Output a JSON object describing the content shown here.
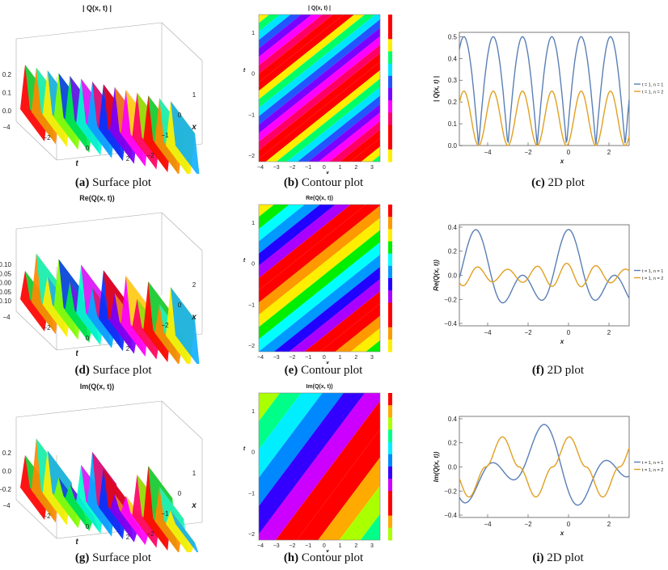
{
  "rows": [
    {
      "surface": {
        "title": "| Q(x, t) |",
        "zticks": [
          "0.2",
          "0.1",
          "0.0"
        ],
        "tticks": [
          "−4",
          "−2",
          "0",
          "2"
        ],
        "xticks": [
          "1",
          "0",
          "−1",
          "−2"
        ],
        "xlabel": "x",
        "tlabel": "t"
      },
      "contour": {
        "title": "| Q(x, t) |",
        "yticks": [
          "1",
          "0",
          "−1",
          "−2"
        ],
        "xticks": [
          "−4",
          "−3",
          "−2",
          "−1",
          "0",
          "1",
          "2",
          "3"
        ],
        "xlabel": "x",
        "ylabel": "t",
        "stripes": 5.2,
        "slope": 1.25,
        "palette": "abs"
      },
      "line": {
        "ylabel": "| Q(x, t) |",
        "xlabel": "x",
        "xticks": [
          "−4",
          "−2",
          "0",
          "2"
        ],
        "yticks": [
          "0.0",
          "0.1",
          "0.2",
          "0.3",
          "0.4",
          "0.5"
        ],
        "ylim": [
          0,
          0.52
        ],
        "legend": [
          "t = 1, n = 1",
          "t = 1, n = 2"
        ]
      },
      "captions": [
        {
          "tag": "(a)",
          "text": "Surface plot"
        },
        {
          "tag": "(b)",
          "text": "Contour plot"
        },
        {
          "tag": "(c)",
          "text": "2D plot"
        }
      ]
    },
    {
      "surface": {
        "title": "Re(Q(x, t))",
        "zticks": [
          "0.10",
          "0.05",
          "0.00",
          "−0.05",
          "−0.10"
        ],
        "tticks": [
          "−4",
          "−2",
          "0",
          "2"
        ],
        "xticks": [
          "2",
          "0",
          "−2"
        ],
        "xlabel": "x",
        "tlabel": "t"
      },
      "contour": {
        "title": "Re(Q(x, t))",
        "yticks": [
          "1",
          "0",
          "−1",
          "−2"
        ],
        "xticks": [
          "−4",
          "−3",
          "−2",
          "−1",
          "0",
          "1",
          "2",
          "3"
        ],
        "xlabel": "x",
        "ylabel": "t",
        "stripes": 3.6,
        "slope": 1.25,
        "palette": "re"
      },
      "line": {
        "ylabel": "Re(Q(x, t))",
        "xlabel": "x",
        "xticks": [
          "−4",
          "−2",
          "0",
          "2"
        ],
        "yticks": [
          "−0.4",
          "−0.2",
          "0.0",
          "0.2",
          "0.4"
        ],
        "ylim": [
          -0.42,
          0.42
        ],
        "legend": [
          "t = 1, n = 1",
          "t = 1, n = 2"
        ]
      },
      "captions": [
        {
          "tag": "(d)",
          "text": "Surface plot"
        },
        {
          "tag": "(e)",
          "text": "Contour plot"
        },
        {
          "tag": "(f)",
          "text": "2D plot"
        }
      ]
    },
    {
      "surface": {
        "title": "Im(Q(x, t))",
        "zticks": [
          "0.2",
          "0.0",
          "−0.2"
        ],
        "tticks": [
          "−4",
          "−2",
          "0",
          "2"
        ],
        "xticks": [
          "1",
          "0",
          "−1",
          "−2"
        ],
        "xlabel": "x",
        "tlabel": "t"
      },
      "contour": {
        "title": "Im(Q(x, t))",
        "yticks": [
          "1",
          "0",
          "−1",
          "−2"
        ],
        "xticks": [
          "−4",
          "−3",
          "−2",
          "−1",
          "0",
          "1",
          "2",
          "3"
        ],
        "xlabel": "x",
        "ylabel": "t",
        "stripes": 2.6,
        "slope": 0.75,
        "palette": "im"
      },
      "line": {
        "ylabel": "Im(Q(x, t))",
        "xlabel": "x",
        "xticks": [
          "−4",
          "−2",
          "0",
          "2"
        ],
        "yticks": [
          "−0.4",
          "−0.2",
          "0.0",
          "0.2",
          "0.4"
        ],
        "ylim": [
          -0.42,
          0.42
        ],
        "legend": [
          "t = 1, n = 1",
          "t = 1, n = 2"
        ]
      },
      "captions": [
        {
          "tag": "(g)",
          "text": "Surface plot"
        },
        {
          "tag": "(h)",
          "text": "Contour plot"
        },
        {
          "tag": "(i)",
          "text": "2D plot"
        }
      ]
    }
  ],
  "chart_data": [
    {
      "type": "line",
      "title": "",
      "xlabel": "x",
      "ylabel": "| Q(x, t) |",
      "xlim": [
        -5.4,
        3
      ],
      "ylim": [
        0,
        0.52
      ],
      "series": [
        {
          "name": "t = 1, n = 1",
          "peak": 0.5,
          "period": 1.43,
          "zeros_at": [
            -4.4,
            -2.95,
            -1.55,
            -0.1,
            1.35,
            2.8
          ]
        },
        {
          "name": "t = 1, n = 2",
          "peak": 0.25,
          "period": 1.43,
          "zeros_at": [
            -4.4,
            -2.95,
            -1.55,
            -0.1,
            1.35,
            2.8
          ]
        }
      ]
    },
    {
      "type": "line",
      "title": "",
      "xlabel": "x",
      "ylabel": "Re(Q(x, t))",
      "xlim": [
        -5.4,
        3
      ],
      "ylim": [
        -0.42,
        0.42
      ],
      "series": [
        {
          "name": "t = 1, n = 1",
          "amplitude": 0.38,
          "maxima_at": [
            -4.6,
            0,
            1.45
          ],
          "minima_at": [
            -3.6,
            -2.1,
            2.85
          ]
        },
        {
          "name": "t = 1, n = 2",
          "amplitude": 0.1,
          "period": 1.45
        }
      ]
    },
    {
      "type": "line",
      "title": "",
      "xlabel": "x",
      "ylabel": "Im(Q(x, t))",
      "xlim": [
        -5.4,
        3
      ],
      "ylim": [
        -0.42,
        0.42
      ],
      "series": [
        {
          "name": "t = 1, n = 1",
          "amplitude": 0.38,
          "maxima_at": [
            -1.85,
            0
          ],
          "minima_at": [
            -4.2,
            -2.9,
            1.2
          ]
        },
        {
          "name": "t = 1, n = 2",
          "amplitude": 0.25,
          "maxima_at": [
            -3.4,
            0,
            2.95
          ],
          "minima_at": [
            -5,
            -1.7,
            1.3
          ]
        }
      ]
    }
  ],
  "colors": {
    "series1": "#5a7fb5",
    "series2": "#e0a021",
    "frame": "#9a9a9a"
  }
}
